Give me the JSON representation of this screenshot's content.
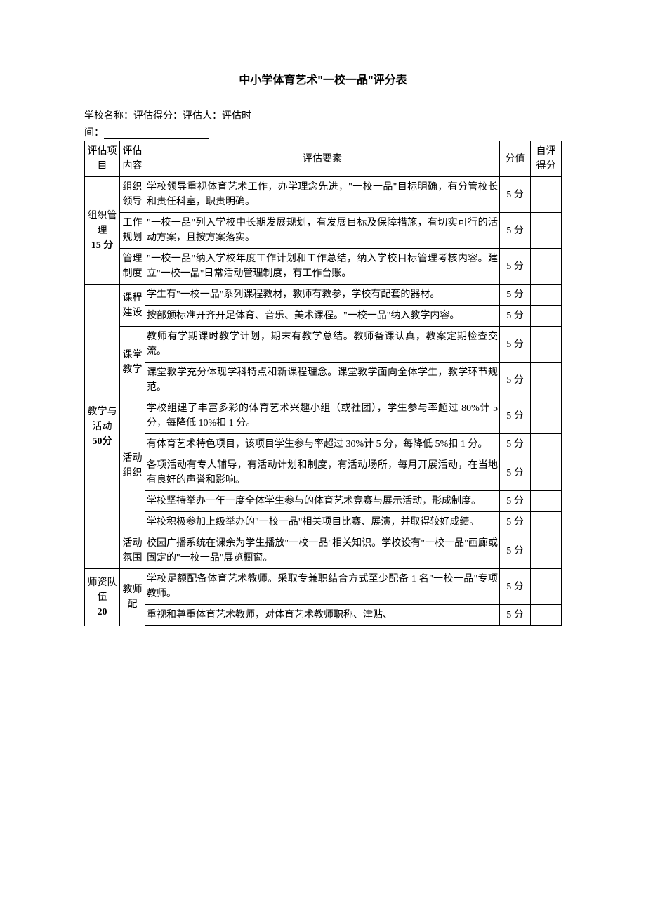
{
  "title": "中小学体育艺术\"一校一品\"评分表",
  "meta1": "学校名称：评估得分：评估人：评估时",
  "meta2_prefix": "间：",
  "headers": {
    "project": "评估项目",
    "content": "评估内容",
    "element": "评估要素",
    "score": "分值",
    "self": "自评得分"
  },
  "sections": [
    {
      "project_label": "组织管理",
      "project_score_label": "15 分",
      "bold_score": true,
      "contents": [
        {
          "label": "组织领导",
          "rows": [
            {
              "text": "学校领导重视体育艺术工作，办学理念先进，\"一校一品\"目标明确，有分管校长和责任科室，职责明确。",
              "score": "5 分"
            }
          ]
        },
        {
          "label": "工作规划",
          "rows": [
            {
              "text": "\"一校一品\"列入学校中长期发展规划，有发展目标及保障措施，有切实可行的活动方案，且按方案落实。",
              "score": "5 分"
            }
          ]
        },
        {
          "label": "管理制度",
          "rows": [
            {
              "text": "\"一校一品\"纳入学校年度工作计划和工作总结，纳入学校目标管理考核内容。建立\"一校一品\"日常活动管理制度，有工作台账。",
              "score": "5 分"
            }
          ]
        }
      ]
    },
    {
      "project_label": "教学与活动",
      "project_score_label": "50分",
      "bold_score": true,
      "contents": [
        {
          "label": "课程建设",
          "rows": [
            {
              "text": "学生有\"一校一品\"系列课程教材，教师有教参，学校有配套的器材。",
              "score": "5 分"
            },
            {
              "text": "按部颁标准开齐开足体育、音乐、美术课程。\"一校一品\"纳入教学内容。",
              "score": "5 分"
            }
          ]
        },
        {
          "label": "课堂教学",
          "rows": [
            {
              "text": "教师有学期课时教学计划，期末有教学总结。教师备课认真，教案定期检查交流。",
              "score": "5 分"
            },
            {
              "text": "课堂教学充分体现学科特点和新课程理念。课堂教学面向全体学生，教学环节规范。",
              "score": "5 分"
            }
          ]
        },
        {
          "label": "活动组织",
          "rows": [
            {
              "text": "学校组建了丰富多彩的体育艺术兴趣小组（或社团），学生参与率超过 80%计 5 分，每降低 10%扣 1 分。",
              "score": "5 分"
            },
            {
              "text": "有体育艺术特色项目，该项目学生参与率超过 30%计 5 分，每降低 5%扣 1 分。",
              "score": "5 分"
            },
            {
              "text": "各项活动有专人辅导，有活动计划和制度，有活动场所，每月开展活动，在当地有良好的声誉和影响。",
              "score": "5 分"
            },
            {
              "text": "学校坚持举办一年一度全体学生参与的体育艺术竞赛与展示活动，形成制度。",
              "score": "5 分"
            },
            {
              "text": "学校积极参加上级举办的\"一校一品\"相关项目比赛、展演，并取得较好成绩。",
              "score": "5 分"
            }
          ]
        },
        {
          "label": "活动氛围",
          "rows": [
            {
              "text": "校园广播系统在课余为学生播放\"一校一品\"相关知识。学校设有\"一校一品\"画廊或固定的\"一校一品\"展览橱窗。",
              "score": "5 分"
            }
          ]
        }
      ]
    },
    {
      "project_label": "师资队伍",
      "project_score_label": "20",
      "bold_score": true,
      "project_open": true,
      "contents": [
        {
          "label": "教师配",
          "label_open": true,
          "rows": [
            {
              "text": "学校足额配备体育艺术教师。采取专兼职结合方式至少配备 1 名\"一校一品\"专项教师。",
              "score": "5 分"
            },
            {
              "text": "重视和尊重体育艺术教师，对体育艺术教师职称、津贴、",
              "score": "5 分"
            }
          ]
        }
      ]
    }
  ]
}
